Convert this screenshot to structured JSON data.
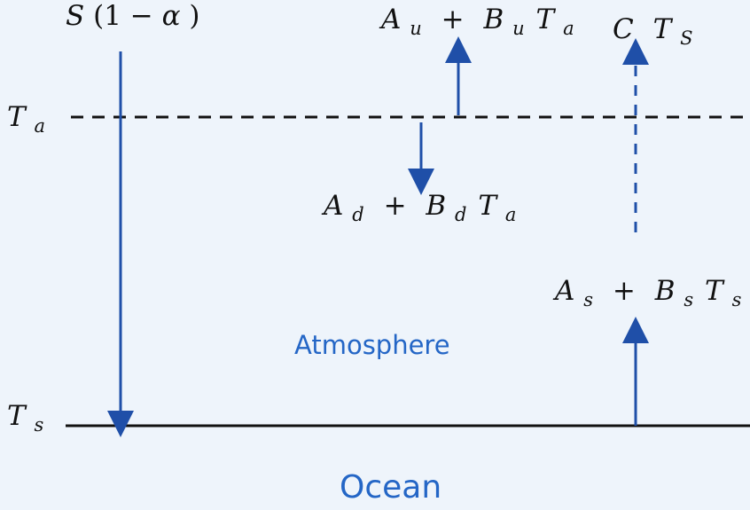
{
  "colors": {
    "background": "#eef4fb",
    "arrow": "#1f4fa8",
    "line": "#111111",
    "label_blue": "#2466c6"
  },
  "labels": {
    "shortwave": {
      "main": "S",
      "rest": "(1 − ",
      "alpha": "α",
      "close": ")"
    },
    "upward_atm": {
      "A": "A",
      "A_sub": "u",
      "plus": "+",
      "B": "B",
      "B_sub": "u",
      "T": "T",
      "T_sub": "a"
    },
    "cts": {
      "C": "C",
      "T": "T",
      "T_sub": "S"
    },
    "ta": {
      "T": "T",
      "sub": "a"
    },
    "downward_atm": {
      "A": "A",
      "A_sub": "d",
      "plus": "+",
      "B": "B",
      "B_sub": "d",
      "T": "T",
      "T_sub": "a"
    },
    "surface_flux": {
      "A": "A",
      "A_sub": "s",
      "plus": "+",
      "B": "B",
      "B_sub": "s",
      "T": "T",
      "T_sub": "s"
    },
    "ts": {
      "T": "T",
      "sub": "s"
    },
    "atmosphere": "Atmosphere",
    "ocean": "Ocean"
  }
}
